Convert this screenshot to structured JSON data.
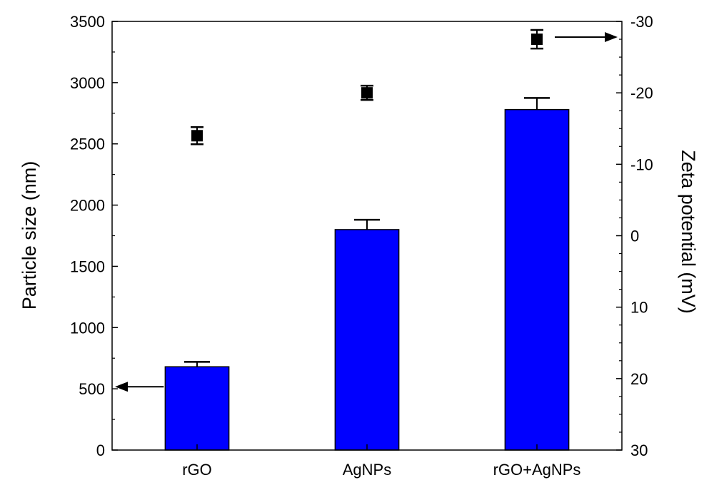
{
  "chart_data": {
    "type": "bar",
    "categories": [
      "rGO",
      "AgNPs",
      "rGO+AgNPs"
    ],
    "series": [
      {
        "axis": "left",
        "type": "bar",
        "values": [
          680,
          1800,
          2780
        ],
        "error": [
          40,
          80,
          95
        ],
        "color": "#0000ff"
      },
      {
        "axis": "right",
        "type": "scatter",
        "values": [
          -14,
          -20,
          -27.5
        ],
        "error": [
          1.2,
          1.0,
          1.3
        ],
        "color": "#000000"
      }
    ],
    "ylabel": "Particle size (nm)",
    "ylim": [
      0,
      3500
    ],
    "yticks": [
      0,
      500,
      1000,
      1500,
      2000,
      2500,
      3000,
      3500
    ],
    "y2label": "Zeta potential (mV)",
    "y2lim": [
      30,
      -30
    ],
    "y2ticks": [
      30,
      20,
      10,
      0,
      -10,
      -20,
      -30
    ],
    "grid": false,
    "arrows": [
      {
        "points_to": "left axis",
        "at_series": "bars"
      },
      {
        "points_to": "right axis",
        "at_series": "squares"
      }
    ]
  }
}
